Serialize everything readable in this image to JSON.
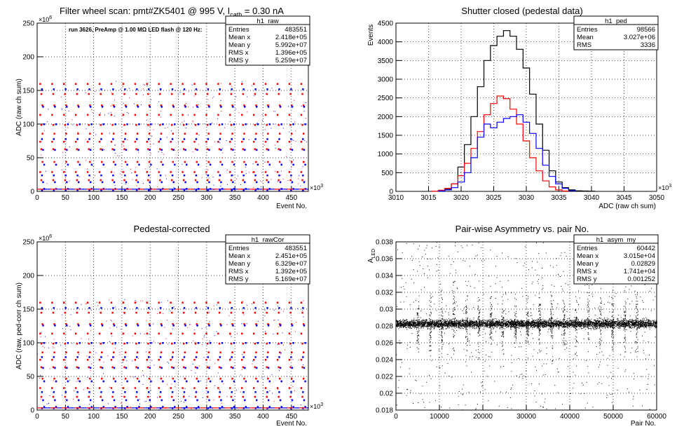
{
  "chart_data": [
    {
      "type": "scatter",
      "title": "Filter wheel scan: pmt#ZK5401 @   995 V, I",
      "title_sub": "cath",
      "title_tail": " = 0.30 nA",
      "annotation": "run 3626, PreAmp @ 1.00 MΩ LED flash @  120 Hz:",
      "xlabel": "Event No.",
      "ylabel": "ADC (raw ch sum)",
      "x_multiplier": "×10",
      "x_multiplier_exp": "3",
      "y_multiplier": "×10",
      "y_multiplier_exp": "6",
      "xlim": [
        0,
        480
      ],
      "ylim": [
        0,
        250
      ],
      "x_ticks": [
        "0",
        "50",
        "100",
        "150",
        "200",
        "250",
        "300",
        "350",
        "400",
        "450"
      ],
      "y_ticks": [
        "0",
        "50",
        "100",
        "150",
        "200",
        "250"
      ],
      "grid": true,
      "stats": {
        "name": "h1_raw",
        "rows": [
          {
            "k": "Entries",
            "v": "483551"
          },
          {
            "k": "Mean x",
            "v": "2.418e+05"
          },
          {
            "k": "Mean y",
            "v": "5.992e+07"
          },
          {
            "k": "RMS x",
            "v": "1.396e+05"
          },
          {
            "k": "RMS y",
            "v": "5.259e+07"
          }
        ]
      },
      "series": [
        {
          "color": "#ff0000",
          "levels": [
            160,
            145,
            128,
            114,
            99,
            86,
            74,
            63,
            44,
            29,
            17
          ]
        },
        {
          "color": "#0000ff",
          "levels": [
            152,
            126,
            100,
            78,
            62,
            40,
            24,
            14,
            4,
            2
          ]
        }
      ]
    },
    {
      "type": "line",
      "title": "Shutter closed (pedestal data)",
      "xlabel": "ADC (raw ch sum)",
      "ylabel": "Events",
      "x_multiplier": "×10",
      "x_multiplier_exp": "3",
      "xlim": [
        3010,
        3050
      ],
      "ylim": [
        0,
        4500
      ],
      "x_ticks": [
        "3010",
        "3015",
        "3020",
        "3025",
        "3030",
        "3035",
        "3040",
        "3045",
        "3050"
      ],
      "y_ticks": [
        "0",
        "500",
        "1000",
        "1500",
        "2000",
        "2500",
        "3000",
        "3500",
        "4000",
        "4500"
      ],
      "grid": true,
      "stats": {
        "name": "h1_ped",
        "rows": [
          {
            "k": "Entries",
            "v": "98566"
          },
          {
            "k": "Mean",
            "v": "3.027e+06"
          },
          {
            "k": "RMS",
            "v": "3336"
          }
        ]
      },
      "series": [
        {
          "color": "#000000",
          "x": [
            3017,
            3018,
            3019,
            3020,
            3021,
            3022,
            3023,
            3024,
            3025,
            3026,
            3027,
            3028,
            3029,
            3030,
            3031,
            3032,
            3033,
            3034,
            3035,
            3036,
            3037,
            3038,
            3039,
            3040
          ],
          "y": [
            10,
            60,
            200,
            650,
            1250,
            2000,
            2800,
            3500,
            3900,
            4150,
            4300,
            4150,
            3800,
            3300,
            2600,
            1800,
            1100,
            550,
            250,
            100,
            40,
            15,
            10,
            5
          ]
        },
        {
          "color": "#ff0000",
          "x": [
            3016,
            3017,
            3018,
            3019,
            3020,
            3021,
            3022,
            3023,
            3024,
            3025,
            3026,
            3027,
            3028,
            3029,
            3030,
            3031,
            3032,
            3033,
            3034,
            3035,
            3036
          ],
          "y": [
            5,
            30,
            80,
            200,
            420,
            750,
            1150,
            1600,
            2050,
            2350,
            2550,
            2480,
            2200,
            1800,
            1350,
            900,
            550,
            280,
            120,
            40,
            10
          ]
        },
        {
          "color": "#0000ff",
          "x": [
            3017,
            3018,
            3019,
            3020,
            3021,
            3022,
            3023,
            3024,
            3025,
            3026,
            3027,
            3028,
            3029,
            3030,
            3031,
            3032,
            3033,
            3034,
            3035,
            3036,
            3037
          ],
          "y": [
            10,
            40,
            100,
            250,
            500,
            900,
            1450,
            1800,
            1700,
            1850,
            1950,
            2000,
            2050,
            1850,
            1550,
            1150,
            700,
            400,
            200,
            80,
            20
          ]
        }
      ]
    },
    {
      "type": "scatter",
      "title": "Pedestal-corrected",
      "xlabel": "Event No.",
      "ylabel": "ADC (raw, ped-corr ch sum)",
      "x_multiplier": "×10",
      "x_multiplier_exp": "3",
      "y_multiplier": "×10",
      "y_multiplier_exp": "6",
      "xlim": [
        0,
        480
      ],
      "ylim": [
        0,
        250
      ],
      "x_ticks": [
        "0",
        "50",
        "100",
        "150",
        "200",
        "250",
        "300",
        "350",
        "400",
        "450"
      ],
      "y_ticks": [
        "0",
        "50",
        "100",
        "150",
        "200",
        "250"
      ],
      "grid": true,
      "stats": {
        "name": "h1_rawCor",
        "rows": [
          {
            "k": "Entries",
            "v": "483551"
          },
          {
            "k": "Mean x",
            "v": "2.451e+05"
          },
          {
            "k": "Mean y",
            "v": "6.329e+07"
          },
          {
            "k": "RMS x",
            "v": "1.392e+05"
          },
          {
            "k": "RMS y",
            "v": "5.169e+07"
          }
        ]
      },
      "series": [
        {
          "color": "#ff0000",
          "levels": [
            160,
            145,
            128,
            114,
            99,
            86,
            75,
            64,
            47,
            33,
            20
          ]
        },
        {
          "color": "#0000ff",
          "levels": [
            152,
            126,
            100,
            79,
            63,
            43,
            27,
            15,
            5,
            3
          ]
        }
      ]
    },
    {
      "type": "scatter",
      "title": "Pair-wise Asymmetry vs. pair No.",
      "xlabel": "Pair No.",
      "ylabel": "A",
      "ylabel_sub": "LED",
      "xlim": [
        0,
        60000
      ],
      "ylim": [
        0.018,
        0.038
      ],
      "x_ticks": [
        "0",
        "10000",
        "20000",
        "30000",
        "40000",
        "50000",
        "60000"
      ],
      "y_ticks": [
        "0.018",
        "0.02",
        "0.022",
        "0.024",
        "0.026",
        "0.028",
        "0.03",
        "0.032",
        "0.034",
        "0.036",
        "0.038"
      ],
      "grid": true,
      "stats": {
        "name": "h1_asym_my",
        "rows": [
          {
            "k": "Entries",
            "v": "60442"
          },
          {
            "k": "Mean x",
            "v": "3.015e+04"
          },
          {
            "k": "Mean y",
            "v": "0.02829"
          },
          {
            "k": "RMS x",
            "v": "1.741e+04"
          },
          {
            "k": "RMS y",
            "v": "0.001252"
          }
        ]
      },
      "series": [
        {
          "color": "#000000",
          "mean": 0.02829,
          "rms": 0.0004,
          "spikes_x": [
            5000,
            7800,
            10500,
            13300,
            16200,
            19000,
            21800,
            24500,
            27400,
            30200,
            33000,
            35800,
            38600,
            41400,
            44200,
            47000,
            49800,
            52600,
            55400
          ]
        }
      ]
    }
  ]
}
